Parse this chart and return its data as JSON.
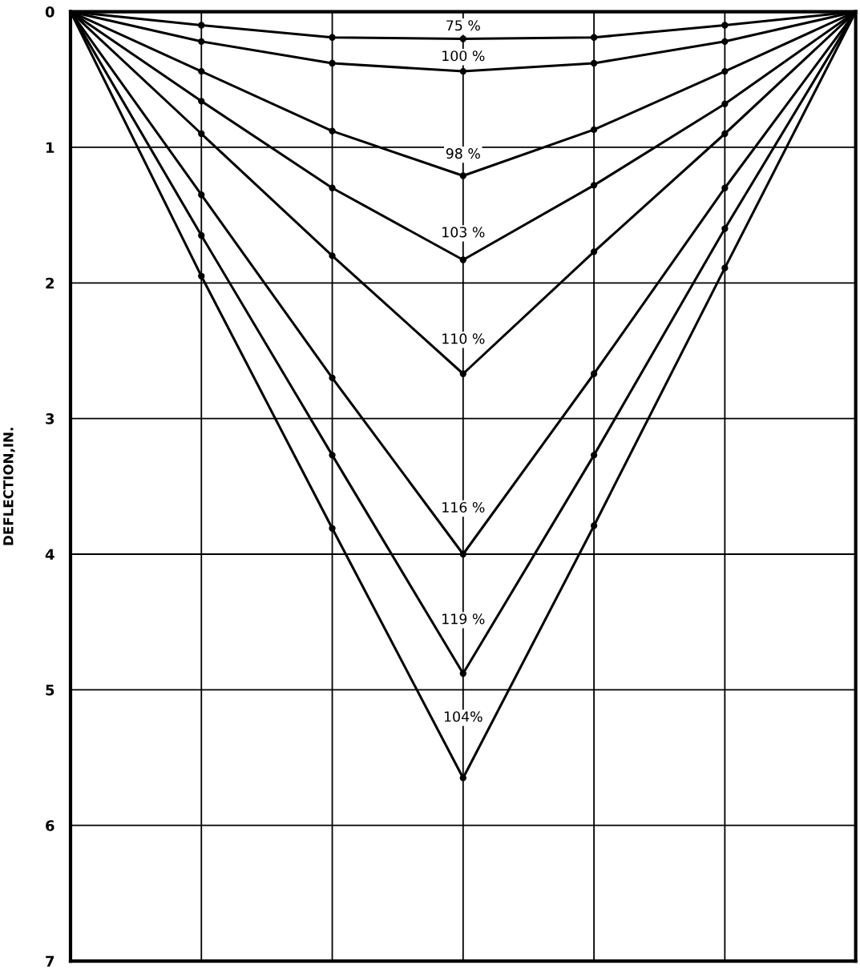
{
  "chart_data": {
    "type": "line",
    "ylabel": "DEFLECTION,IN.",
    "categories": [
      null,
      null,
      null,
      null,
      null,
      null,
      null
    ],
    "series": [
      {
        "name": "75 %",
        "color": "#000000",
        "values": [
          0,
          0.1,
          0.19,
          0.2,
          0.19,
          0.1,
          0
        ]
      },
      {
        "name": "100 %",
        "color": "#000000",
        "values": [
          0,
          0.22,
          0.38,
          0.44,
          0.38,
          0.22,
          0
        ]
      },
      {
        "name": "98 %",
        "color": "#000000",
        "values": [
          0,
          0.44,
          0.88,
          1.21,
          0.87,
          0.44,
          0
        ]
      },
      {
        "name": "103 %",
        "color": "#000000",
        "values": [
          0,
          0.66,
          1.3,
          1.83,
          1.28,
          0.68,
          0
        ]
      },
      {
        "name": "110 %",
        "color": "#000000",
        "values": [
          0,
          0.9,
          1.8,
          2.67,
          1.77,
          0.9,
          0
        ]
      },
      {
        "name": "116 %",
        "color": "#000000",
        "values": [
          0,
          1.35,
          2.7,
          4.0,
          2.67,
          1.3,
          0
        ]
      },
      {
        "name": "119 %",
        "color": "#000000",
        "values": [
          0,
          1.65,
          3.27,
          4.88,
          3.27,
          1.6,
          0
        ]
      },
      {
        "name": "104%",
        "color": "#000000",
        "values": [
          0,
          1.95,
          3.81,
          5.65,
          3.79,
          1.89,
          0
        ]
      }
    ],
    "ylim": [
      7,
      0
    ],
    "yticks": [
      0,
      1,
      2,
      3,
      4,
      5,
      6,
      7
    ],
    "grid": true,
    "marker": "circle",
    "tick_labels": "y"
  }
}
